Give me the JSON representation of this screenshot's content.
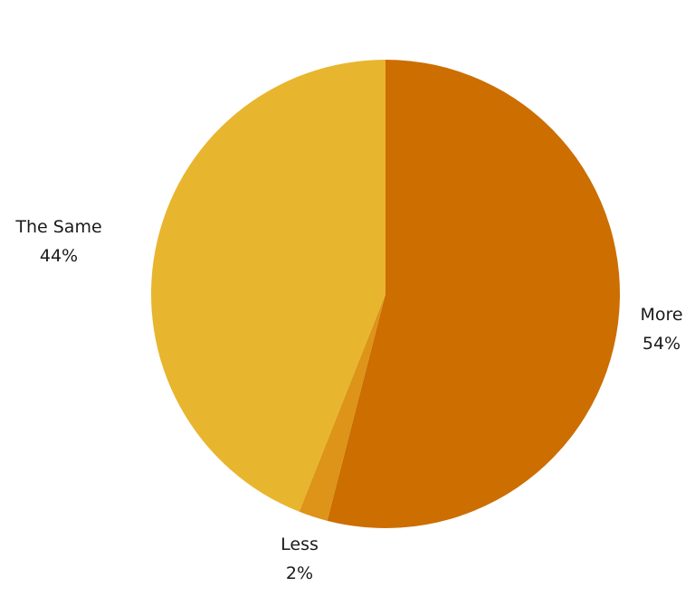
{
  "chart_data": {
    "type": "pie",
    "start_angle": "12 o'clock",
    "direction": "clockwise",
    "slices": [
      {
        "label": "More",
        "value": 54,
        "value_label": "54%",
        "color": "#CC6E00"
      },
      {
        "label": "Less",
        "value": 2,
        "value_label": "2%",
        "color": "#DD9419"
      },
      {
        "label": "The Same",
        "value": 44,
        "value_label": "44%",
        "color": "#E8B52E"
      }
    ],
    "legend": "none"
  }
}
